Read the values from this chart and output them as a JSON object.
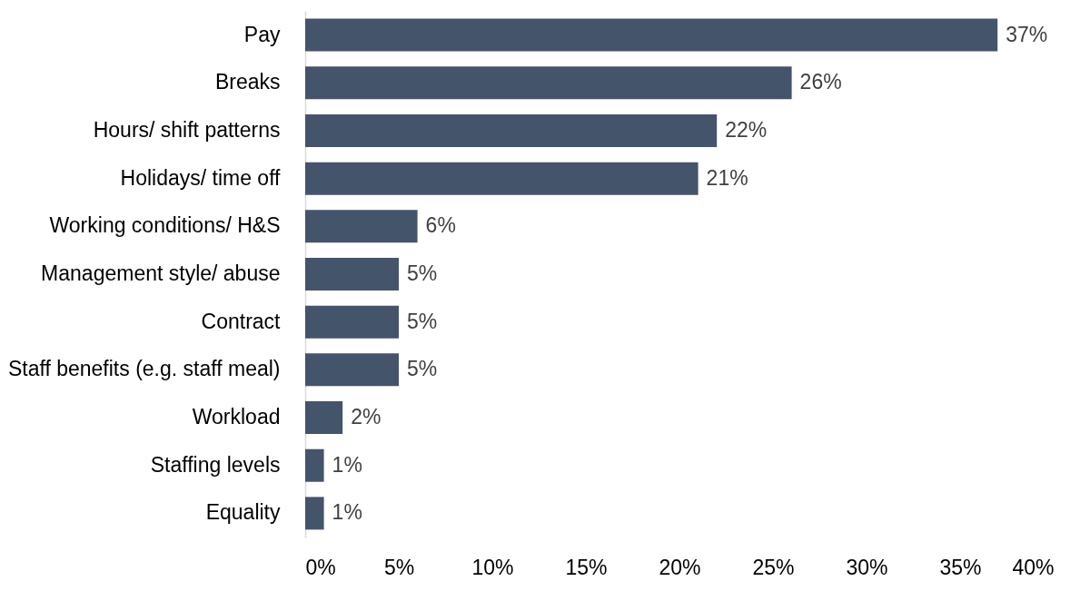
{
  "chart_data": {
    "type": "bar",
    "orientation": "horizontal",
    "categories": [
      "Pay",
      "Breaks",
      "Hours/ shift patterns",
      "Holidays/ time off",
      "Working conditions/ H&S",
      "Management style/ abuse",
      "Contract",
      "Staff benefits (e.g. staff meal)",
      "Workload",
      "Staffing levels",
      "Equality"
    ],
    "values": [
      37,
      26,
      22,
      21,
      6,
      5,
      5,
      5,
      2,
      1,
      1
    ],
    "value_labels": [
      "37%",
      "26%",
      "22%",
      "21%",
      "6%",
      "5%",
      "5%",
      "5%",
      "2%",
      "1%",
      "1%"
    ],
    "color": "#44546a",
    "xlim": [
      0,
      40
    ],
    "xticks": [
      {
        "value": 0,
        "label": "0%"
      },
      {
        "value": 5,
        "label": "5%"
      },
      {
        "value": 10,
        "label": "10%"
      },
      {
        "value": 15,
        "label": "15%"
      },
      {
        "value": 20,
        "label": "20%"
      },
      {
        "value": 25,
        "label": "25%"
      },
      {
        "value": 30,
        "label": "30%"
      },
      {
        "value": 35,
        "label": "35%"
      },
      {
        "value": 40,
        "label": "40%"
      }
    ],
    "grid": false
  }
}
